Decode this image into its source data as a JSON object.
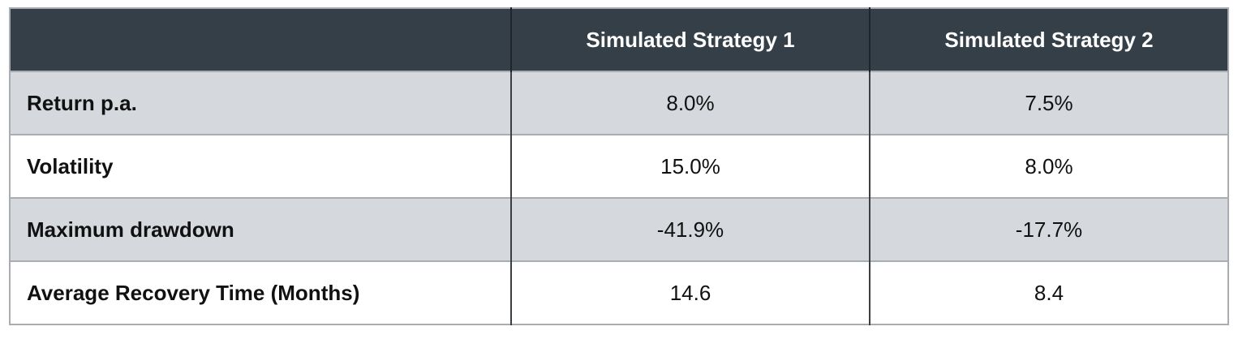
{
  "table": {
    "columns": [
      "Simulated Strategy 1",
      "Simulated Strategy 2"
    ],
    "rows": [
      [
        "Return p.a.",
        "8.0%",
        "7.5%"
      ],
      [
        "Volatility",
        "15.0%",
        "8.0%"
      ],
      [
        "Maximum drawdown",
        "-41.9%",
        "-17.7%"
      ],
      [
        "Average Recovery Time (Months)",
        "14.6",
        "8.4"
      ]
    ]
  }
}
